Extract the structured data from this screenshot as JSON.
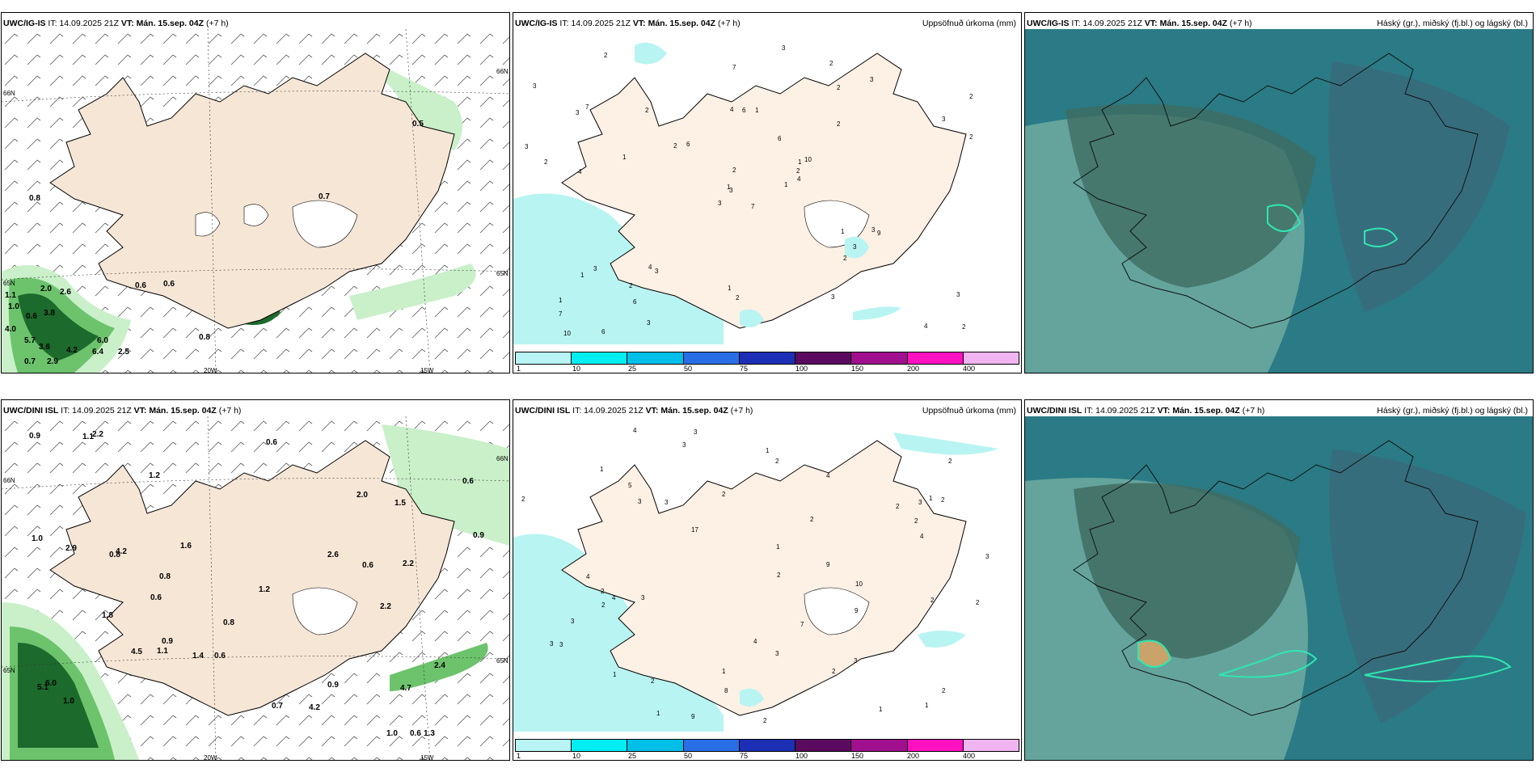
{
  "colors": {
    "land": "#f6e6d6",
    "sea": "#ffffff",
    "precip_light": "#b8f4f2",
    "cloud_low": "#2a7b85",
    "cloud_high": "#6aa9a0",
    "cloud_mid": "#3f6d62",
    "green_light": "#c9f0c9",
    "green_mid": "#6cc36c",
    "green_dark": "#1c6a2c"
  },
  "colorbar": {
    "labels": [
      "1",
      "10",
      "25",
      "50",
      "75",
      "100",
      "150",
      "200",
      "400"
    ],
    "colors": [
      "#b8f4f4",
      "#00eef2",
      "#00c0ea",
      "#2a6ee6",
      "#1c2fb4",
      "#5a0b60",
      "#a0108e",
      "#ff10c0",
      "#f0b4f0"
    ]
  },
  "rows": [
    {
      "model": "UWC/IG-IS",
      "it_prefix": " IT: ",
      "it": "14.09.2025 21Z",
      "vt_prefix": " VT: ",
      "vt": "Mán. 15.sep. 04Z",
      "lead": " (+7 h)",
      "precip_title": "Uppsöfnuð úrkoma (mm)",
      "cloud_title": "Háský (gr.), miðský (fj.bl.) og lágský (bl.)",
      "grid_labels": {
        "lat66_left": "66N",
        "lat66_right": "66N",
        "lat65_right": "65N",
        "lat65_left": "65N",
        "lon20": "20W",
        "lon15": "15W"
      },
      "wind_values": [
        "0.8",
        "0.5",
        "0.7",
        "0.6",
        "0.6",
        "1.1",
        "1.0",
        "2.0",
        "2.6",
        "0.6",
        "3.8",
        "4.0",
        "5.7",
        "3.6",
        "4.2",
        "6.0",
        "6.4",
        "2.5",
        "0.7",
        "2.9",
        "0.8"
      ],
      "precip_values": [
        "7",
        "3",
        "3",
        "1",
        "1",
        "3",
        "2",
        "1",
        "2",
        "1",
        "2",
        "2",
        "4",
        "2",
        "3",
        "2",
        "6",
        "4",
        "6",
        "3",
        "6",
        "7",
        "6",
        "6",
        "10",
        "9",
        "7",
        "7",
        "2",
        "1",
        "2",
        "1",
        "1",
        "2",
        "2",
        "3",
        "4",
        "4",
        "3",
        "3",
        "3",
        "2",
        "1",
        "2",
        "3",
        "3",
        "2",
        "10",
        "2",
        "4",
        "1",
        "3",
        "3",
        "3",
        "3",
        "2"
      ]
    },
    {
      "model": "UWC/DINI ISL",
      "it_prefix": " IT: ",
      "it": "14.09.2025 21Z",
      "vt_prefix": " VT: ",
      "vt": "Mán. 15.sep. 04Z",
      "lead": " (+7 h)",
      "precip_title": "Uppsöfnuð úrkoma (mm)",
      "cloud_title": "Háský (gr.), miðský (fj.bl.) og lágský (bl.)",
      "grid_labels": {
        "lat66_left": "66N",
        "lat66_right": "66N",
        "lat65_right": "65N",
        "lat65_left": "65N",
        "lon20": "20W",
        "lon15": "15W"
      },
      "wind_values": [
        "0.8",
        "0.8",
        "1.1",
        "2.2",
        "1.3",
        "1.2",
        "0.6",
        "0.6",
        "1.1",
        "0.6",
        "2.2",
        "0.6",
        "0.9",
        "1.0",
        "0.8",
        "0.9",
        "1.2",
        "0.9",
        "0.6",
        "1.6",
        "0.6",
        "4.2",
        "4.2",
        "4.5",
        "4.7",
        "2.6",
        "0.7",
        "6.0",
        "1.5",
        "5.1",
        "0.9",
        "1.4",
        "1.0",
        "2.4",
        "2.0",
        "1.0",
        "2.9",
        "2.2",
        "1.8"
      ],
      "precip_values": [
        "2",
        "2",
        "2",
        "2",
        "5",
        "1",
        "1",
        "2",
        "3",
        "9",
        "2",
        "4",
        "3",
        "2",
        "3",
        "2",
        "3",
        "3",
        "3",
        "3",
        "7",
        "4",
        "8",
        "9",
        "9",
        "10",
        "3",
        "1",
        "1",
        "1",
        "4",
        "2",
        "2",
        "2",
        "4",
        "2",
        "4",
        "2",
        "3",
        "3",
        "3",
        "3",
        "2",
        "1",
        "17",
        "2",
        "1",
        "1",
        "1",
        "2",
        "4",
        "2"
      ]
    }
  ]
}
